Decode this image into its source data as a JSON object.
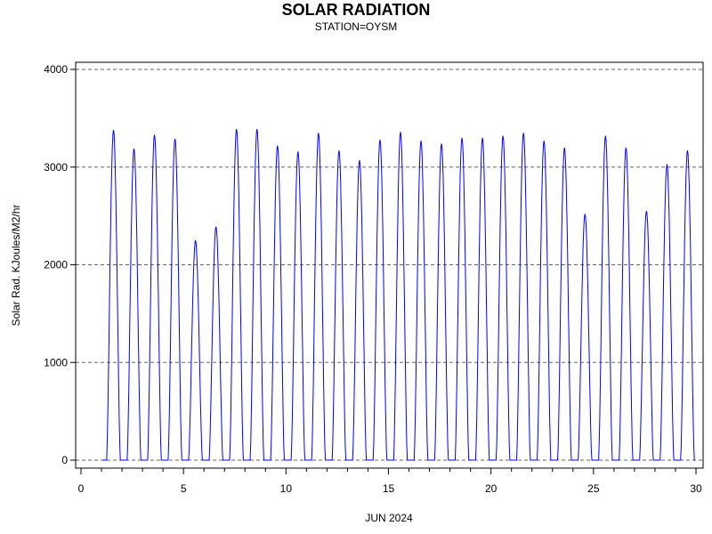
{
  "chart_data": {
    "type": "line",
    "title": "SOLAR RADIATION",
    "subtitle": "STATION=OYSM",
    "xlabel": "JUN 2024",
    "ylabel": "Solar Rad. KJoules/M2/hr",
    "xlim": [
      0,
      30.3
    ],
    "ylim": [
      -80,
      4080
    ],
    "xticks": [
      0,
      5,
      10,
      15,
      20,
      25,
      30
    ],
    "yticks": [
      0,
      1000,
      2000,
      3000,
      4000
    ],
    "grid": {
      "y_dashed": true,
      "x": false
    },
    "line_color": "#0000ff",
    "series": [
      {
        "daily_peaks": [
          {
            "day": 1,
            "peak": 3380
          },
          {
            "day": 2,
            "peak": 3190
          },
          {
            "day": 3,
            "peak": 3330
          },
          {
            "day": 4,
            "peak": 3290
          },
          {
            "day": 5,
            "peak": 2250
          },
          {
            "day": 6,
            "peak": 2390
          },
          {
            "day": 7,
            "peak": 3390
          },
          {
            "day": 8,
            "peak": 3390
          },
          {
            "day": 9,
            "peak": 3220
          },
          {
            "day": 10,
            "peak": 3160
          },
          {
            "day": 11,
            "peak": 3350
          },
          {
            "day": 12,
            "peak": 3170
          },
          {
            "day": 13,
            "peak": 3070
          },
          {
            "day": 14,
            "peak": 3280
          },
          {
            "day": 15,
            "peak": 3360
          },
          {
            "day": 16,
            "peak": 3270
          },
          {
            "day": 17,
            "peak": 3240
          },
          {
            "day": 18,
            "peak": 3300
          },
          {
            "day": 19,
            "peak": 3300
          },
          {
            "day": 20,
            "peak": 3320
          },
          {
            "day": 21,
            "peak": 3350
          },
          {
            "day": 22,
            "peak": 3270
          },
          {
            "day": 23,
            "peak": 3200
          },
          {
            "day": 24,
            "peak": 2520
          },
          {
            "day": 25,
            "peak": 3320
          },
          {
            "day": 26,
            "peak": 3200
          },
          {
            "day": 27,
            "peak": 2550
          },
          {
            "day": 28,
            "peak": 3030
          },
          {
            "day": 29,
            "peak": 3170
          }
        ]
      }
    ]
  }
}
